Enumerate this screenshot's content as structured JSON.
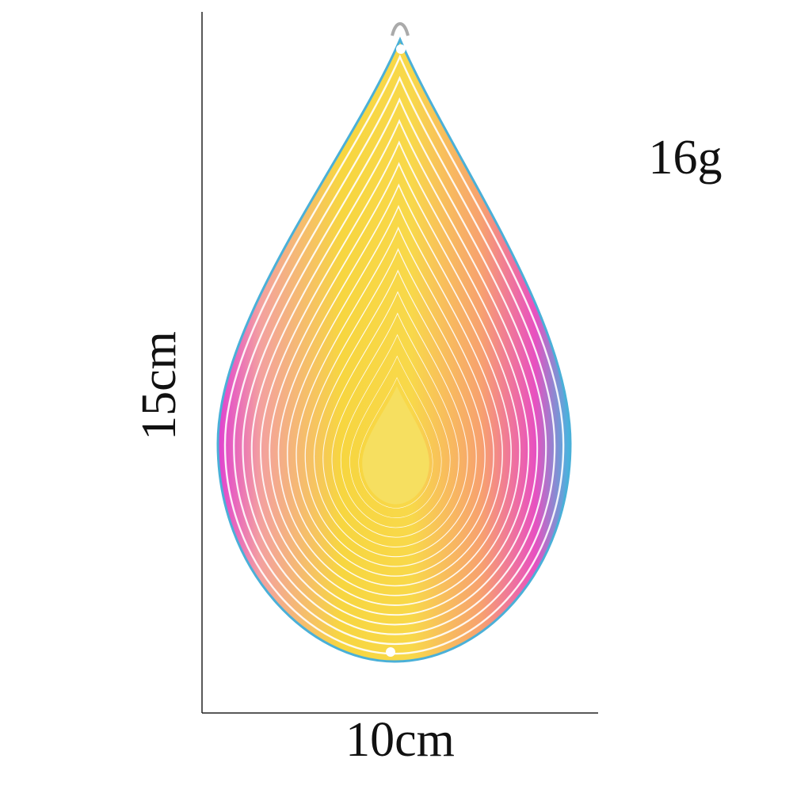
{
  "labels": {
    "weight": "16g",
    "height": "15cm",
    "width": "10cm"
  }
}
